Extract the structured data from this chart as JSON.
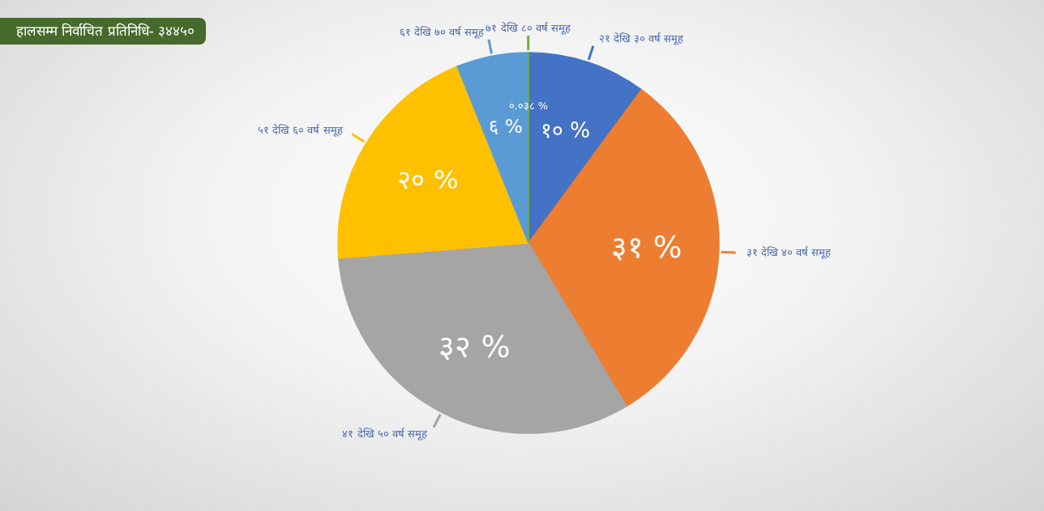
{
  "chart_data": {
    "type": "pie",
    "title": "हालसम्म निर्वाचित प्रतिनिधि- ३४४५०",
    "categories": [
      "२१ देखि ३० वर्ष समूह",
      "३१ देखि ४० वर्ष समूह",
      "४१ देखि ५० वर्ष समूह",
      "५१ देखि ६० वर्ष समूह",
      "६१ देखि ७० वर्ष समूह",
      "७१ देखि ८० वर्ष समूह"
    ],
    "values": [
      10,
      31,
      32,
      20,
      6,
      0.038
    ],
    "colors": [
      "#4472c4",
      "#ed7d31",
      "#a5a5a5",
      "#ffc000",
      "#5b9bd5",
      "#70ad47"
    ],
    "value_labels": [
      "१० %",
      "३१ %",
      "३२ %",
      "२० %",
      "६ %",
      "०.०३८ %"
    ]
  }
}
